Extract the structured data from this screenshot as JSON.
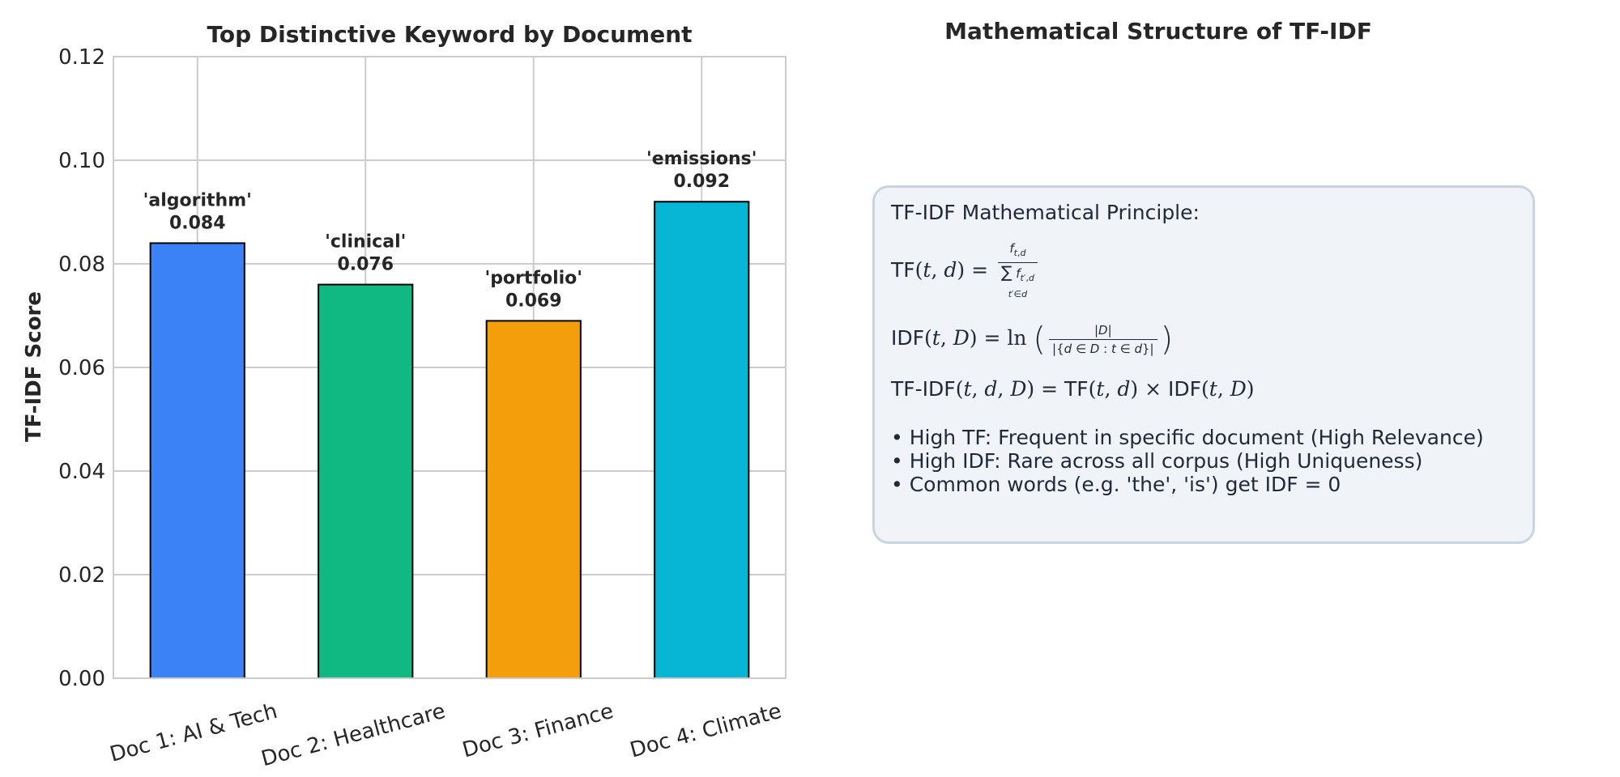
{
  "chart_data": {
    "type": "bar",
    "title": "Top Distinctive Keyword by Document",
    "xlabel": "",
    "ylabel": "TF-IDF Score",
    "ylim": [
      0,
      0.12
    ],
    "yticks": [
      "0.00",
      "0.02",
      "0.04",
      "0.06",
      "0.08",
      "0.10",
      "0.12"
    ],
    "ytick_values": [
      0,
      0.02,
      0.04,
      0.06,
      0.08,
      0.1,
      0.12
    ],
    "grid": true,
    "categories": [
      "Doc 1: AI & Tech",
      "Doc 2: Healthcare",
      "Doc 3: Finance",
      "Doc 4: Climate"
    ],
    "values": [
      0.084,
      0.076,
      0.069,
      0.092
    ],
    "value_labels": [
      "0.084",
      "0.076",
      "0.069",
      "0.092"
    ],
    "keywords": [
      "'algorithm'",
      "'clinical'",
      "'portfolio'",
      "'emissions'"
    ],
    "colors": [
      "#3b82f6",
      "#10b981",
      "#f59e0b",
      "#06b6d4"
    ]
  },
  "right_panel": {
    "title": "Mathematical Structure of TF-IDF",
    "heading": "TF-IDF Mathematical Principle:",
    "tf_prefix": "TF",
    "idf_prefix": "IDF",
    "tfidf_prefix": "TF-IDF",
    "bullets": [
      "• High TF: Frequent in specific document (High Relevance)",
      "• High IDF: Rare across all corpus (High Uniqueness)",
      "• Common words (e.g. 'the', 'is') get IDF = 0"
    ]
  }
}
